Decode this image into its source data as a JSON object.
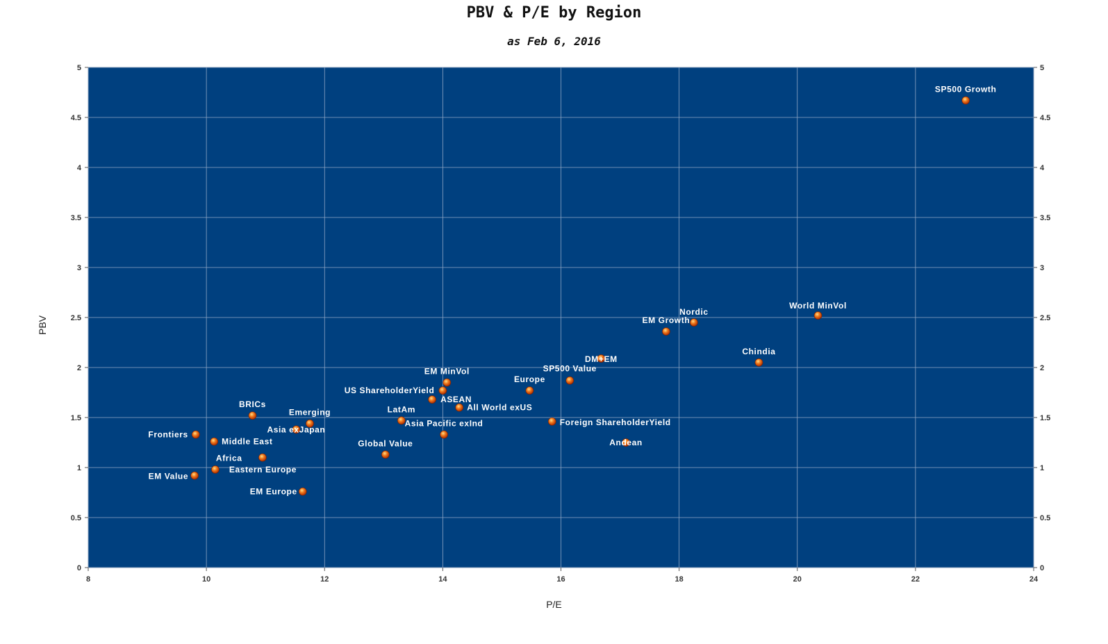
{
  "chart_data": {
    "type": "scatter",
    "title": "PBV & P/E by Region",
    "subtitle": "as Feb 6, 2016",
    "xlabel": "P/E",
    "ylabel": "PBV",
    "xlim": [
      8,
      24
    ],
    "ylim": [
      0,
      5
    ],
    "x_ticks": [
      "8",
      "10",
      "12",
      "14",
      "16",
      "18",
      "20",
      "22",
      "24"
    ],
    "y_ticks": [
      "0",
      "0.5",
      "1",
      "1.5",
      "2",
      "2.5",
      "3",
      "3.5",
      "4",
      "4.5",
      "5"
    ],
    "grid": true,
    "secondary_y_axis": true,
    "plot_background": "#00407F",
    "marker_color": "#E8641A",
    "points": [
      {
        "label": "SP500 Growth",
        "x": 22.85,
        "y": 4.67
      },
      {
        "label": "World MinVol",
        "x": 20.35,
        "y": 2.52
      },
      {
        "label": "Nordic",
        "x": 18.25,
        "y": 2.45
      },
      {
        "label": "EM Growth",
        "x": 17.78,
        "y": 2.36
      },
      {
        "label": "Chindia",
        "x": 19.35,
        "y": 2.05
      },
      {
        "label": "DM+EM",
        "x": 16.68,
        "y": 2.09
      },
      {
        "label": "SP500 Value",
        "x": 16.15,
        "y": 1.87
      },
      {
        "label": "Europe",
        "x": 15.47,
        "y": 1.77
      },
      {
        "label": "EM MinVol",
        "x": 14.07,
        "y": 1.85
      },
      {
        "label": "US ShareholderYield",
        "x": 14.0,
        "y": 1.77
      },
      {
        "label": "ASEAN",
        "x": 13.82,
        "y": 1.68
      },
      {
        "label": "All World exUS",
        "x": 14.28,
        "y": 1.6
      },
      {
        "label": "LatAm",
        "x": 13.3,
        "y": 1.47
      },
      {
        "label": "Foreign ShareholderYield",
        "x": 15.85,
        "y": 1.46
      },
      {
        "label": "Asia Pacific exInd",
        "x": 14.02,
        "y": 1.33
      },
      {
        "label": "Andean",
        "x": 17.1,
        "y": 1.25
      },
      {
        "label": "Global Value",
        "x": 13.03,
        "y": 1.13
      },
      {
        "label": "BRICs",
        "x": 10.78,
        "y": 1.52
      },
      {
        "label": "Emerging",
        "x": 11.75,
        "y": 1.44
      },
      {
        "label": "Asia exJapan",
        "x": 11.52,
        "y": 1.38
      },
      {
        "label": "Frontiers",
        "x": 9.82,
        "y": 1.33
      },
      {
        "label": "Middle East",
        "x": 10.13,
        "y": 1.26
      },
      {
        "label": "Africa",
        "x": 10.95,
        "y": 1.1
      },
      {
        "label": "Eastern Europe",
        "x": 10.15,
        "y": 0.98
      },
      {
        "label": "EM Value",
        "x": 9.8,
        "y": 0.92
      },
      {
        "label": "EM Europe",
        "x": 11.63,
        "y": 0.76
      }
    ]
  }
}
